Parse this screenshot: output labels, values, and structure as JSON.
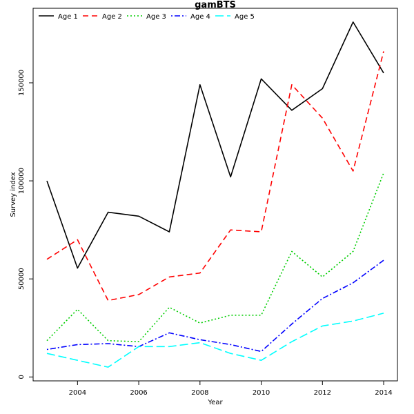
{
  "chart_data": {
    "type": "line",
    "title": "gamBTS",
    "xlabel": "Year",
    "ylabel": "Survey index",
    "x": [
      2003,
      2004,
      2005,
      2006,
      2007,
      2008,
      2009,
      2010,
      2011,
      2012,
      2013,
      2014
    ],
    "xlim": [
      2002.55,
      2014.45
    ],
    "ylim": [
      -2000,
      188000
    ],
    "x_ticks": [
      "2004",
      "2006",
      "2008",
      "2010",
      "2012",
      "2014"
    ],
    "y_ticks": [
      "0",
      "50000",
      "100000",
      "150000"
    ],
    "grid": false,
    "legend_position": "top",
    "series": [
      {
        "name": "Age 1",
        "color": "#000000",
        "dash": "solid",
        "values": [
          100000,
          55500,
          84000,
          82000,
          74000,
          149000,
          102000,
          152000,
          136000,
          147000,
          181000,
          155000
        ]
      },
      {
        "name": "Age 2",
        "color": "#ff0000",
        "dash": "dashed",
        "values": [
          60000,
          70000,
          39000,
          42000,
          51000,
          53000,
          75000,
          74000,
          149000,
          132000,
          105000,
          166000
        ]
      },
      {
        "name": "Age 3",
        "color": "#00cd00",
        "dash": "dotted",
        "values": [
          18500,
          34500,
          18500,
          18000,
          35500,
          27500,
          31500,
          31500,
          64000,
          51000,
          64000,
          104000
        ]
      },
      {
        "name": "Age 4",
        "color": "#0000ff",
        "dash": "dotdash",
        "values": [
          14000,
          16500,
          17000,
          15500,
          22500,
          19000,
          16500,
          13000,
          27000,
          40000,
          48000,
          59500
        ]
      },
      {
        "name": "Age 5",
        "color": "#00ffff",
        "dash": "longdash",
        "values": [
          12000,
          8500,
          5000,
          15500,
          15500,
          17500,
          12000,
          8500,
          18000,
          26000,
          28500,
          32500
        ]
      }
    ]
  }
}
